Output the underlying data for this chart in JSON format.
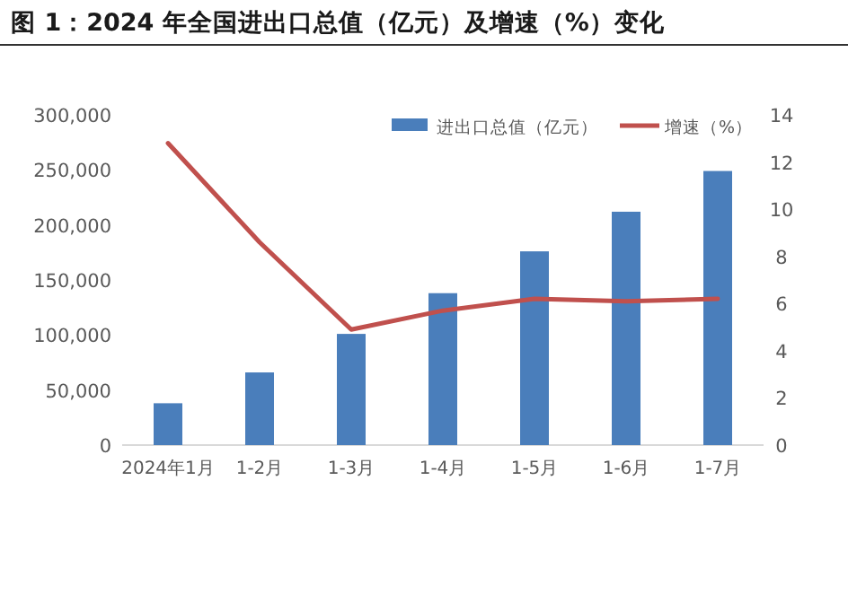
{
  "chart_data": {
    "type": "bar",
    "title": "图 1：2024 年全国进出口总值（亿元）及增速（%）变化",
    "categories": [
      "2024年1月",
      "1-2月",
      "1-3月",
      "1-4月",
      "1-5月",
      "1-6月",
      "1-7月"
    ],
    "series": [
      {
        "name": "进出口总值（亿元）",
        "color": "#4a7ebb",
        "values": [
          38000,
          66000,
          101000,
          138000,
          176000,
          212000,
          249000
        ]
      },
      {
        "name": "增速（%）",
        "type": "line",
        "axis": "y2",
        "color": "#c0504d",
        "values": [
          12.8,
          8.6,
          4.9,
          5.7,
          6.2,
          6.1,
          6.2
        ]
      }
    ],
    "ylim": [
      0,
      300000
    ],
    "yticks": [
      {
        "value": 0,
        "label": "0"
      },
      {
        "value": 50000,
        "label": "50,000"
      },
      {
        "value": 100000,
        "label": "100,000"
      },
      {
        "value": 150000,
        "label": "150,000"
      },
      {
        "value": 200000,
        "label": "200,000"
      },
      {
        "value": 250000,
        "label": "250,000"
      },
      {
        "value": 300000,
        "label": "300,000"
      }
    ],
    "y2lim": [
      0,
      14
    ],
    "y2ticks": [
      0,
      2,
      4,
      6,
      8,
      10,
      12,
      14
    ],
    "legend": "top right"
  }
}
